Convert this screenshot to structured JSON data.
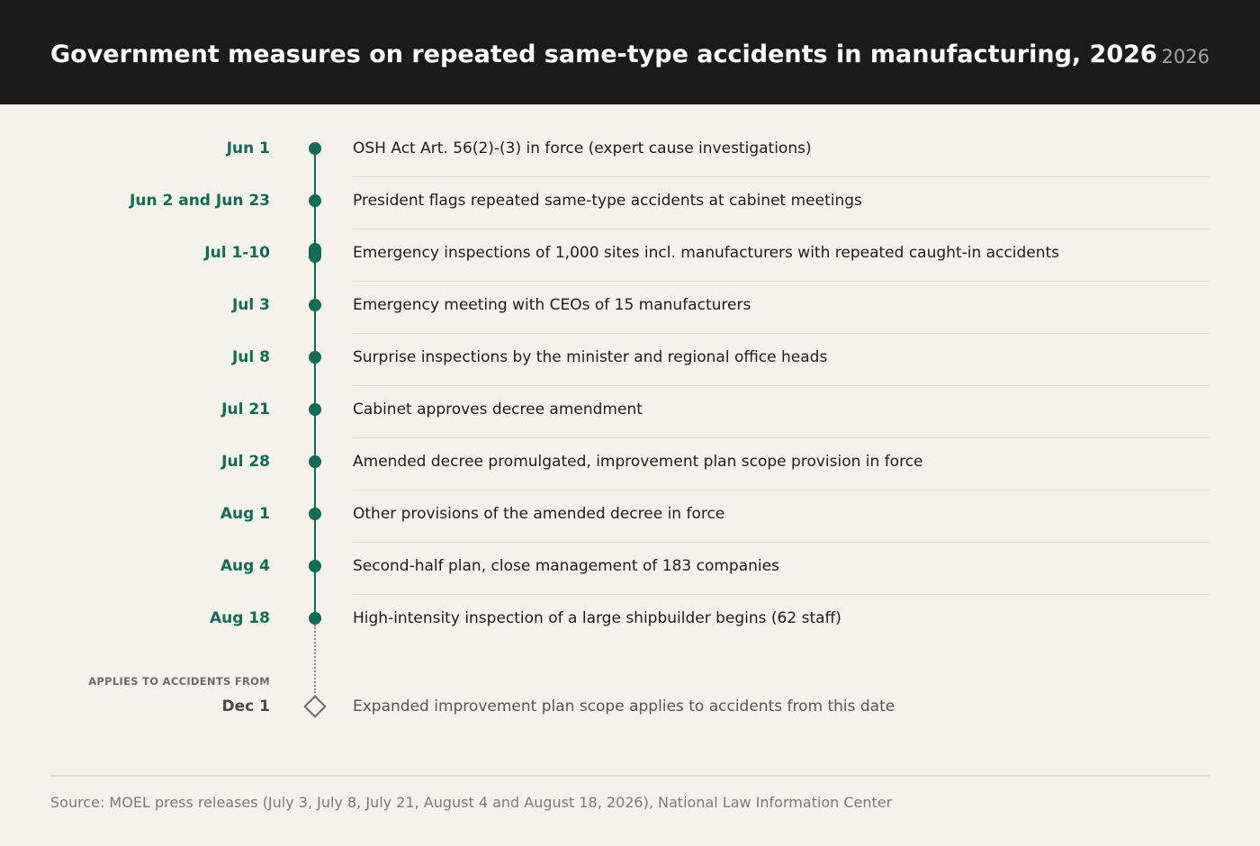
{
  "header": {
    "title": "Government measures on repeated same-type accidents in manufacturing, 2026",
    "year": "2026"
  },
  "timeline": {
    "events": [
      {
        "date": "Jun 1",
        "text": "OSH Act Art. 56(2)-(3) in force (expert cause investigations)",
        "marker": "dot"
      },
      {
        "date": "Jun 2 and Jun 23",
        "text": "President flags repeated same-type accidents at cabinet meetings",
        "marker": "dot"
      },
      {
        "date": "Jul 1-10",
        "text": "Emergency inspections of 1,000 sites incl. manufacturers with repeated caught-in accidents",
        "marker": "range"
      },
      {
        "date": "Jul 3",
        "text": "Emergency meeting with CEOs of 15 manufacturers",
        "marker": "dot"
      },
      {
        "date": "Jul 8",
        "text": "Surprise inspections by the minister and regional office heads",
        "marker": "dot"
      },
      {
        "date": "Jul 21",
        "text": "Cabinet approves decree amendment",
        "marker": "dot"
      },
      {
        "date": "Jul 28",
        "text": "Amended decree promulgated, improvement plan scope provision in force",
        "marker": "dot"
      },
      {
        "date": "Aug 1",
        "text": "Other provisions of the amended decree in force",
        "marker": "dot"
      },
      {
        "date": "Aug 4",
        "text": "Second-half plan, close management of 183 companies",
        "marker": "dot"
      },
      {
        "date": "Aug 18",
        "text": "High-intensity inspection of a large shipbuilder begins (62 staff)",
        "marker": "dot"
      }
    ],
    "future": {
      "caption": "APPLIES TO ACCIDENTS FROM",
      "date": "Dec 1",
      "text": "Expanded improvement plan scope applies to accidents from this date",
      "marker": "diamond"
    },
    "colors": {
      "accent": "#0f6e52",
      "future": "#6b6b6b",
      "background": "#f4f2ea",
      "header": "#1b1b1b"
    }
  },
  "footer": {
    "source": "Source: MOEL press releases (July 3, July 8, July 21, August 4 and August 18, 2026), National Law Information Center"
  }
}
